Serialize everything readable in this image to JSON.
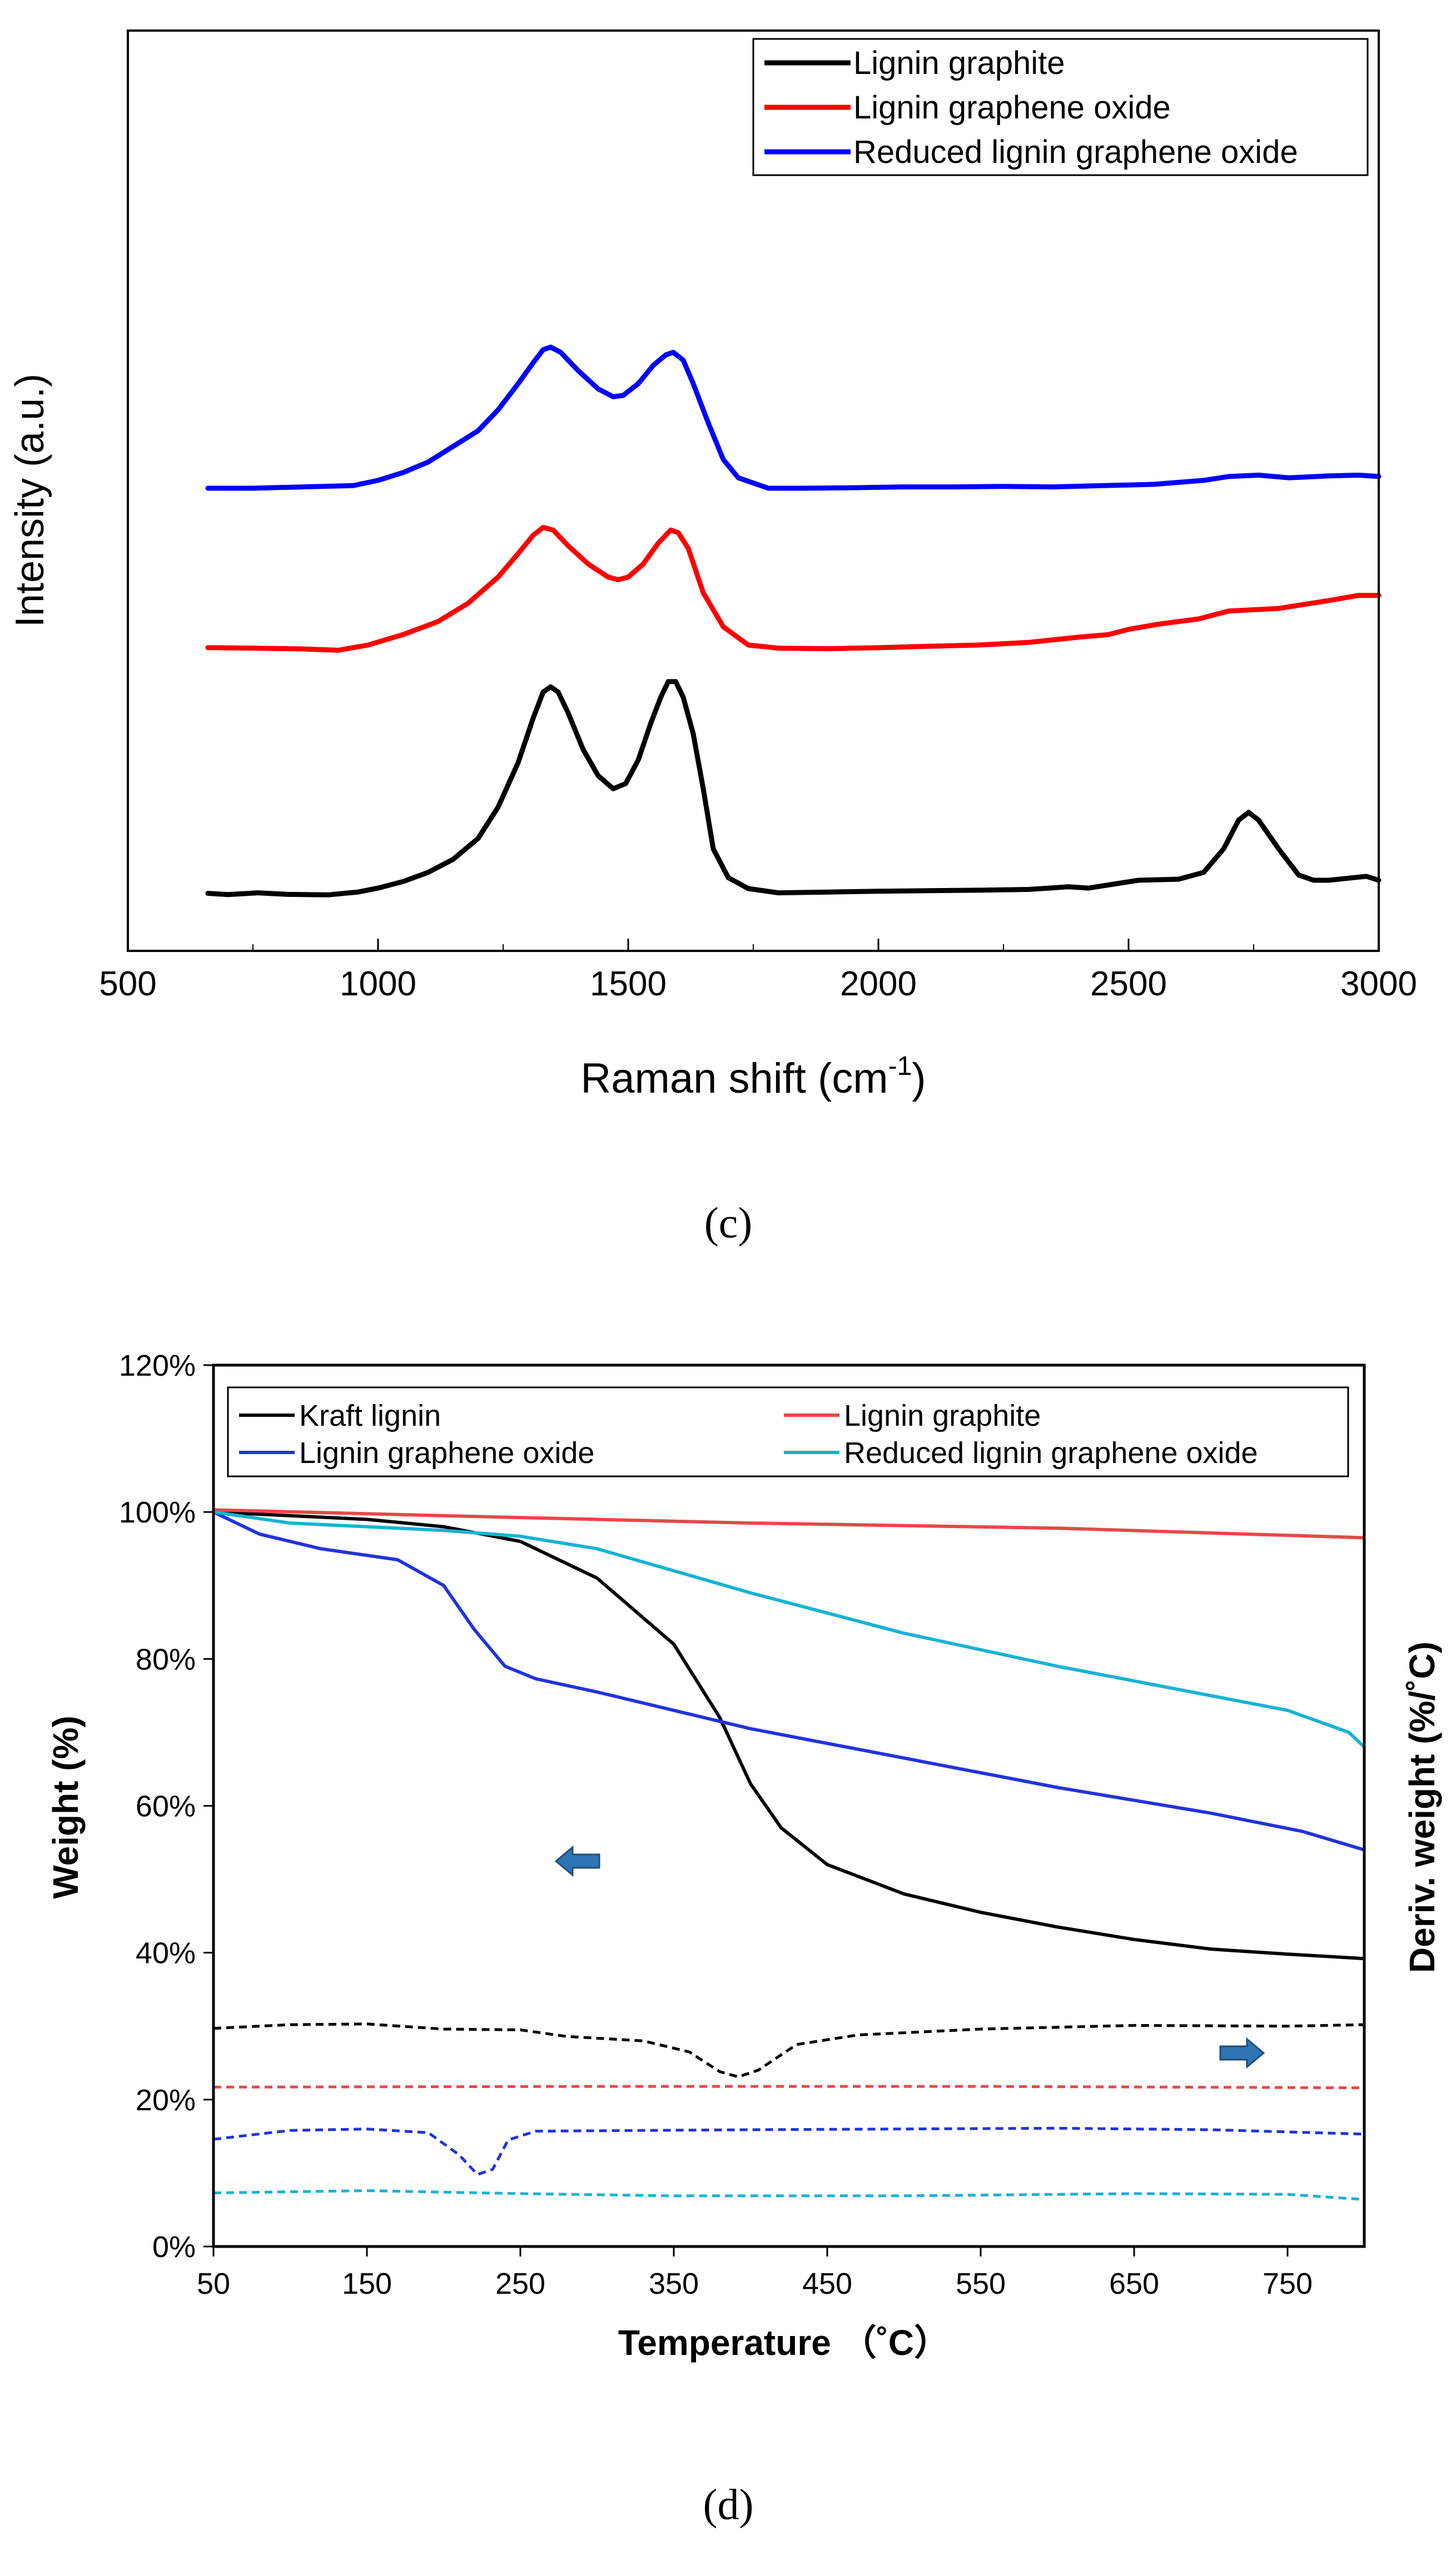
{
  "chart_data": [
    {
      "type": "line",
      "panel_label": "(c)",
      "xlabel_main": "Raman shift (cm",
      "xlabel_sup": "-1",
      "xlabel_close": ")",
      "ylabel": "Intensity (a.u.)",
      "xlim": [
        500,
        3000
      ],
      "x_ticks": [
        "500",
        "1000",
        "1500",
        "2000",
        "2500",
        "3000"
      ],
      "y_ticks_shown": false,
      "legend_position": "top-right",
      "series": [
        {
          "name": "Lignin graphite",
          "color": "#000000",
          "points": [
            [
              660,
              0.05
            ],
            [
              700,
              0.045
            ],
            [
              760,
              0.052
            ],
            [
              820,
              0.046
            ],
            [
              900,
              0.044
            ],
            [
              960,
              0.055
            ],
            [
              1000,
              0.07
            ],
            [
              1050,
              0.095
            ],
            [
              1100,
              0.13
            ],
            [
              1150,
              0.18
            ],
            [
              1200,
              0.26
            ],
            [
              1240,
              0.38
            ],
            [
              1280,
              0.55
            ],
            [
              1310,
              0.72
            ],
            [
              1330,
              0.82
            ],
            [
              1345,
              0.84
            ],
            [
              1360,
              0.82
            ],
            [
              1380,
              0.74
            ],
            [
              1410,
              0.6
            ],
            [
              1440,
              0.5
            ],
            [
              1470,
              0.45
            ],
            [
              1495,
              0.47
            ],
            [
              1520,
              0.56
            ],
            [
              1545,
              0.7
            ],
            [
              1565,
              0.8
            ],
            [
              1580,
              0.86
            ],
            [
              1595,
              0.86
            ],
            [
              1610,
              0.8
            ],
            [
              1630,
              0.66
            ],
            [
              1650,
              0.45
            ],
            [
              1670,
              0.22
            ],
            [
              1700,
              0.11
            ],
            [
              1740,
              0.068
            ],
            [
              1800,
              0.052
            ],
            [
              1900,
              0.055
            ],
            [
              2000,
              0.058
            ],
            [
              2100,
              0.06
            ],
            [
              2200,
              0.062
            ],
            [
              2300,
              0.065
            ],
            [
              2380,
              0.075
            ],
            [
              2420,
              0.07
            ],
            [
              2470,
              0.085
            ],
            [
              2520,
              0.1
            ],
            [
              2600,
              0.104
            ],
            [
              2650,
              0.13
            ],
            [
              2690,
              0.22
            ],
            [
              2720,
              0.33
            ],
            [
              2740,
              0.36
            ],
            [
              2760,
              0.33
            ],
            [
              2800,
              0.22
            ],
            [
              2840,
              0.12
            ],
            [
              2870,
              0.1
            ],
            [
              2900,
              0.1
            ],
            [
              2950,
              0.11
            ],
            [
              2975,
              0.115
            ],
            [
              3000,
              0.1
            ]
          ]
        },
        {
          "name": "Lignin graphene oxide",
          "color": "#ff0000",
          "points": [
            [
              660,
              0.99
            ],
            [
              750,
              0.988
            ],
            [
              850,
              0.985
            ],
            [
              920,
              0.98
            ],
            [
              980,
              1.0
            ],
            [
              1050,
              1.04
            ],
            [
              1120,
              1.09
            ],
            [
              1180,
              1.16
            ],
            [
              1240,
              1.26
            ],
            [
              1280,
              1.35
            ],
            [
              1310,
              1.42
            ],
            [
              1330,
              1.45
            ],
            [
              1350,
              1.44
            ],
            [
              1380,
              1.38
            ],
            [
              1420,
              1.31
            ],
            [
              1460,
              1.26
            ],
            [
              1480,
              1.25
            ],
            [
              1500,
              1.26
            ],
            [
              1530,
              1.31
            ],
            [
              1560,
              1.39
            ],
            [
              1585,
              1.44
            ],
            [
              1600,
              1.43
            ],
            [
              1620,
              1.37
            ],
            [
              1650,
              1.2
            ],
            [
              1690,
              1.07
            ],
            [
              1740,
              1.0
            ],
            [
              1800,
              0.988
            ],
            [
              1900,
              0.986
            ],
            [
              2000,
              0.99
            ],
            [
              2100,
              0.995
            ],
            [
              2200,
              1.0
            ],
            [
              2300,
              1.01
            ],
            [
              2400,
              1.03
            ],
            [
              2460,
              1.04
            ],
            [
              2500,
              1.06
            ],
            [
              2560,
              1.08
            ],
            [
              2640,
              1.1
            ],
            [
              2700,
              1.13
            ],
            [
              2800,
              1.14
            ],
            [
              2900,
              1.17
            ],
            [
              2960,
              1.19
            ],
            [
              3000,
              1.19
            ]
          ]
        },
        {
          "name": "Reduced lignin graphene oxide",
          "color": "#0000ff",
          "points": [
            [
              660,
              1.6
            ],
            [
              750,
              1.6
            ],
            [
              850,
              1.605
            ],
            [
              950,
              1.61
            ],
            [
              1000,
              1.63
            ],
            [
              1050,
              1.66
            ],
            [
              1100,
              1.7
            ],
            [
              1150,
              1.76
            ],
            [
              1200,
              1.82
            ],
            [
              1240,
              1.9
            ],
            [
              1280,
              2.0
            ],
            [
              1310,
              2.08
            ],
            [
              1330,
              2.13
            ],
            [
              1345,
              2.14
            ],
            [
              1365,
              2.12
            ],
            [
              1400,
              2.05
            ],
            [
              1440,
              1.98
            ],
            [
              1470,
              1.95
            ],
            [
              1490,
              1.955
            ],
            [
              1520,
              2.0
            ],
            [
              1550,
              2.07
            ],
            [
              1575,
              2.11
            ],
            [
              1590,
              2.12
            ],
            [
              1610,
              2.09
            ],
            [
              1630,
              2.0
            ],
            [
              1660,
              1.85
            ],
            [
              1690,
              1.71
            ],
            [
              1720,
              1.64
            ],
            [
              1780,
              1.6
            ],
            [
              1850,
              1.6
            ],
            [
              1950,
              1.602
            ],
            [
              2050,
              1.605
            ],
            [
              2150,
              1.605
            ],
            [
              2250,
              1.607
            ],
            [
              2350,
              1.605
            ],
            [
              2450,
              1.61
            ],
            [
              2550,
              1.615
            ],
            [
              2650,
              1.63
            ],
            [
              2700,
              1.645
            ],
            [
              2760,
              1.65
            ],
            [
              2820,
              1.64
            ],
            [
              2900,
              1.647
            ],
            [
              2960,
              1.65
            ],
            [
              3000,
              1.645
            ]
          ]
        }
      ]
    },
    {
      "type": "line",
      "panel_label": "(d)",
      "xlabel": "Temperature （˚C）",
      "ylabel": "Weight (%)",
      "ylabel_right": "Deriv. weight (%/˚C)",
      "xlim": [
        50,
        800
      ],
      "ylim": [
        0,
        120
      ],
      "x_ticks": [
        "50",
        "150",
        "250",
        "350",
        "450",
        "550",
        "650",
        "750"
      ],
      "y_ticks": [
        "0%",
        "20%",
        "40%",
        "60%",
        "80%",
        "100%",
        "120%"
      ],
      "legend_position": "top",
      "annotations": [
        "left arrow near weight curves (left axis)",
        "right arrow near derivative curves (right axis)"
      ],
      "series": [
        {
          "name": "Kraft lignin",
          "color": "#000000",
          "axis": "left",
          "points": [
            [
              50,
              100
            ],
            [
              100,
              99.5
            ],
            [
              150,
              99
            ],
            [
              200,
              98
            ],
            [
              250,
              96
            ],
            [
              300,
              91
            ],
            [
              350,
              82
            ],
            [
              380,
              72
            ],
            [
              400,
              63
            ],
            [
              420,
              57
            ],
            [
              450,
              52
            ],
            [
              500,
              48
            ],
            [
              550,
              45.5
            ],
            [
              600,
              43.5
            ],
            [
              650,
              41.8
            ],
            [
              700,
              40.5
            ],
            [
              750,
              39.8
            ],
            [
              800,
              39.2
            ]
          ]
        },
        {
          "name": "Lignin graphite",
          "color": "#e84848",
          "axis": "left",
          "points": [
            [
              50,
              100.3
            ],
            [
              200,
              99.5
            ],
            [
              400,
              98.5
            ],
            [
              600,
              97.8
            ],
            [
              800,
              96.5
            ]
          ]
        },
        {
          "name": "Lignin graphene oxide",
          "color": "#2233dd",
          "axis": "left",
          "points": [
            [
              50,
              100
            ],
            [
              80,
              97
            ],
            [
              120,
              95
            ],
            [
              170,
              93.5
            ],
            [
              200,
              90
            ],
            [
              220,
              84
            ],
            [
              240,
              79
            ],
            [
              260,
              77.3
            ],
            [
              300,
              75.5
            ],
            [
              350,
              73
            ],
            [
              400,
              70.5
            ],
            [
              500,
              66.5
            ],
            [
              600,
              62.5
            ],
            [
              700,
              59
            ],
            [
              760,
              56.5
            ],
            [
              800,
              54
            ]
          ]
        },
        {
          "name": "Reduced lignin graphene oxide",
          "color": "#17b3d1",
          "axis": "left",
          "points": [
            [
              50,
              100
            ],
            [
              100,
              98.5
            ],
            [
              200,
              97.5
            ],
            [
              250,
              96.7
            ],
            [
              300,
              95
            ],
            [
              400,
              89
            ],
            [
              500,
              83.5
            ],
            [
              600,
              79
            ],
            [
              700,
              75
            ],
            [
              750,
              73
            ],
            [
              790,
              70
            ],
            [
              800,
              68
            ]
          ]
        },
        {
          "name": "Kraft lignin (deriv.)",
          "color": "#000000",
          "axis": "right",
          "dashed": true,
          "points": [
            [
              50,
              29.7
            ],
            [
              100,
              30.2
            ],
            [
              150,
              30.3
            ],
            [
              200,
              29.6
            ],
            [
              250,
              29.5
            ],
            [
              280,
              28.6
            ],
            [
              330,
              28
            ],
            [
              360,
              26.5
            ],
            [
              380,
              23.8
            ],
            [
              392,
              23.1
            ],
            [
              405,
              24
            ],
            [
              430,
              27.5
            ],
            [
              470,
              28.8
            ],
            [
              550,
              29.6
            ],
            [
              650,
              30.1
            ],
            [
              750,
              30
            ],
            [
              800,
              30.2
            ]
          ]
        },
        {
          "name": "Lignin graphite (deriv.)",
          "color": "#e84848",
          "axis": "right",
          "dashed": true,
          "points": [
            [
              50,
              21.7
            ],
            [
              300,
              21.8
            ],
            [
              550,
              21.8
            ],
            [
              800,
              21.6
            ]
          ]
        },
        {
          "name": "Lignin graphene oxide (deriv.)",
          "color": "#2233dd",
          "axis": "right",
          "dashed": true,
          "points": [
            [
              50,
              14.6
            ],
            [
              100,
              15.8
            ],
            [
              150,
              16
            ],
            [
              190,
              15.5
            ],
            [
              210,
              12.5
            ],
            [
              222,
              9.8
            ],
            [
              232,
              10.5
            ],
            [
              242,
              14.5
            ],
            [
              260,
              15.7
            ],
            [
              400,
              15.9
            ],
            [
              600,
              16.1
            ],
            [
              700,
              15.9
            ],
            [
              800,
              15.3
            ]
          ]
        },
        {
          "name": "Reduced lignin graphene oxide (deriv.)",
          "color": "#17b3d1",
          "axis": "right",
          "dashed": true,
          "points": [
            [
              50,
              7.3
            ],
            [
              150,
              7.6
            ],
            [
              250,
              7.2
            ],
            [
              350,
              6.9
            ],
            [
              500,
              6.9
            ],
            [
              650,
              7.2
            ],
            [
              750,
              7.1
            ],
            [
              800,
              6.4
            ]
          ]
        }
      ]
    }
  ]
}
